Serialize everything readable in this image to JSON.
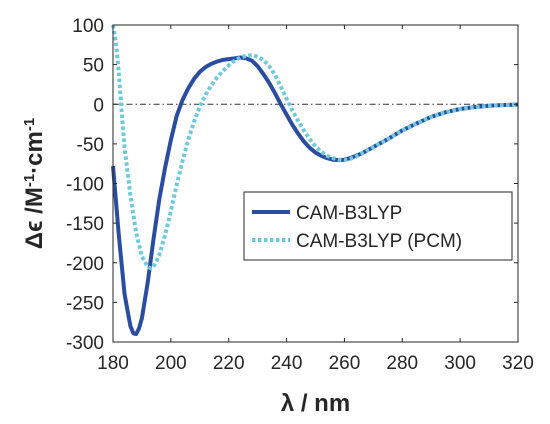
{
  "chart_data": {
    "type": "line",
    "title": "",
    "xlabel": "λ / nm",
    "ylabel_main": "Δϵ /M",
    "ylabel_sup1": "-1",
    "ylabel_mid": "·cm",
    "ylabel_sup2": "-1",
    "xlim": [
      180,
      320
    ],
    "ylim": [
      -300,
      100
    ],
    "xticks": [
      "180",
      "200",
      "220",
      "240",
      "260",
      "280",
      "300",
      "320"
    ],
    "yticks": [
      "100",
      "50",
      "0",
      "-50",
      "-100",
      "-150",
      "-200",
      "-250",
      "-300"
    ],
    "grid": false,
    "legend_position": "right-middle",
    "reference_line": {
      "y": 0,
      "style": "dash-dot",
      "color": "#333333"
    },
    "series": [
      {
        "name": "CAM-B3LYP",
        "color": "#2B4DA0",
        "style": "solid",
        "x": [
          180,
          182,
          184,
          186,
          187,
          188,
          189,
          190,
          192,
          194,
          196,
          198,
          200,
          202,
          204,
          206,
          208,
          210,
          212,
          214,
          216,
          218,
          220,
          222,
          224,
          226,
          228,
          230,
          232,
          234,
          236,
          238,
          240,
          242,
          244,
          246,
          248,
          250,
          252,
          254,
          256,
          258,
          260,
          262,
          264,
          266,
          268,
          270,
          275,
          280,
          285,
          290,
          295,
          300,
          305,
          310,
          315,
          320
        ],
        "y": [
          -78,
          -165,
          -240,
          -280,
          -289,
          -290,
          -283,
          -270,
          -225,
          -170,
          -120,
          -80,
          -45,
          -15,
          5,
          20,
          32,
          41,
          47,
          51,
          54,
          56,
          57,
          58,
          59,
          58,
          55,
          48,
          38,
          27,
          14,
          0,
          -13,
          -26,
          -37,
          -47,
          -55,
          -61,
          -65,
          -68,
          -70,
          -70.5,
          -70,
          -68,
          -65,
          -62,
          -58,
          -54,
          -44,
          -33,
          -24,
          -16,
          -10,
          -6,
          -3.5,
          -2,
          -1,
          -0.5
        ]
      },
      {
        "name": "CAM-B3LYP (PCM)",
        "color": "#6FC9DD",
        "style": "dotted",
        "x": [
          180,
          181,
          182,
          183,
          184,
          186,
          188,
          190,
          192,
          193,
          194,
          195,
          196,
          198,
          200,
          202,
          204,
          206,
          208,
          210,
          212,
          214,
          216,
          218,
          220,
          222,
          224,
          226,
          228,
          230,
          232,
          234,
          236,
          238,
          240,
          242,
          244,
          246,
          248,
          250,
          252,
          254,
          256,
          258,
          260,
          262,
          264,
          266,
          268,
          270,
          275,
          280,
          285,
          290,
          295,
          300,
          305,
          310,
          315,
          320
        ],
        "y": [
          100,
          78,
          40,
          -10,
          -55,
          -115,
          -162,
          -192,
          -205,
          -207,
          -205,
          -198,
          -190,
          -165,
          -135,
          -102,
          -72,
          -45,
          -22,
          -3,
          12,
          24,
          34,
          42,
          49,
          55,
          59,
          61,
          62,
          60,
          56,
          48,
          37,
          22,
          7,
          -8,
          -21,
          -33,
          -44,
          -53,
          -60,
          -65,
          -68,
          -70,
          -70.5,
          -69,
          -66,
          -62,
          -58,
          -54,
          -44,
          -33,
          -24,
          -16,
          -10,
          -6,
          -3.5,
          -2,
          -1,
          -0.5
        ]
      }
    ]
  }
}
